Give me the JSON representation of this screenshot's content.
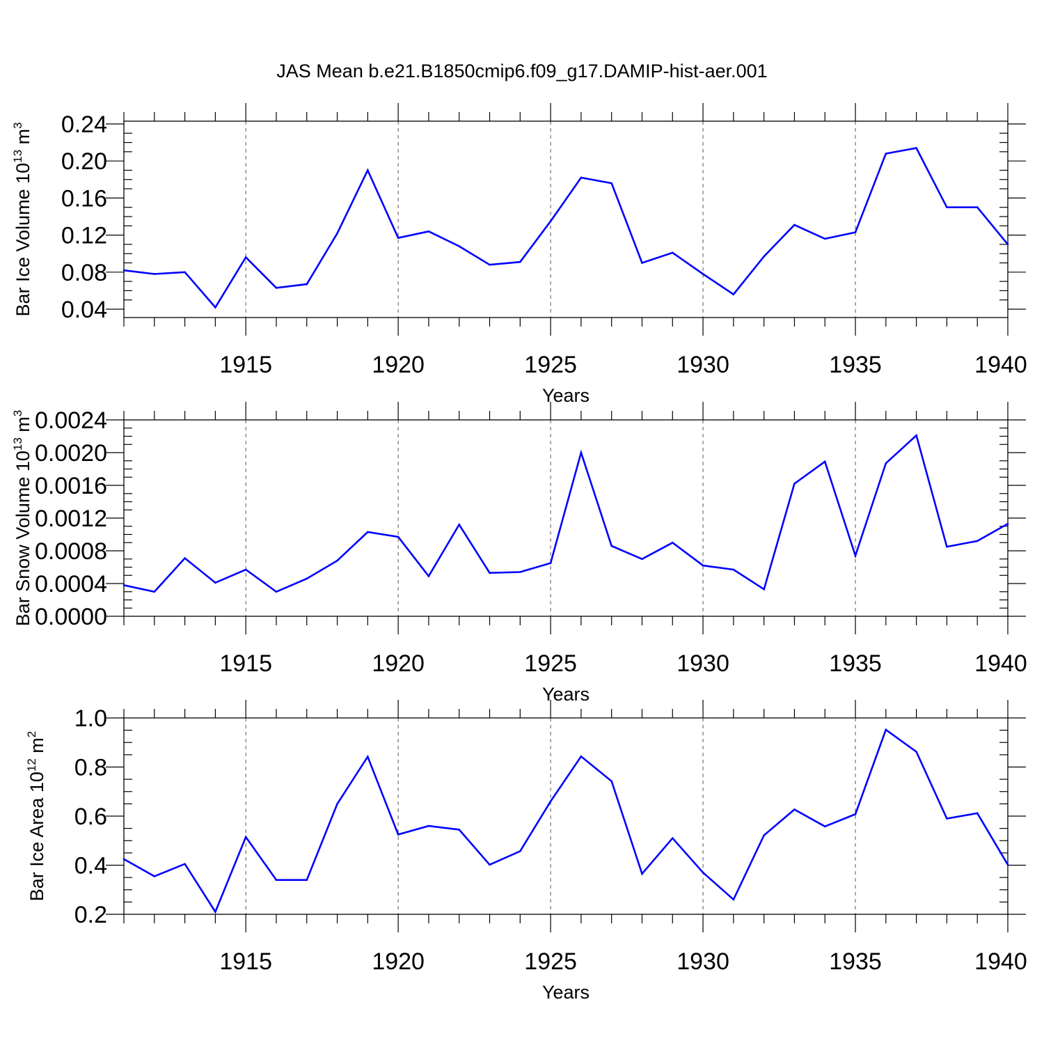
{
  "title": "JAS Mean b.e21.B1850cmip6.f09_g17.DAMIP-hist-aer.001",
  "colors": {
    "line": "#0000ff",
    "axes": "#000000",
    "grid": "#555555",
    "background": "#ffffff"
  },
  "chart_data": [
    {
      "type": "line",
      "ylabel": {
        "prefix": "Bar Ice Volume 10",
        "exp": "13",
        "unit": " m",
        "unit_exp": "3"
      },
      "xlabel": "Years",
      "xlim": [
        1911,
        1940
      ],
      "ylim": [
        0.031,
        0.243
      ],
      "x_ticks": [
        1915,
        1920,
        1925,
        1930,
        1935,
        1940
      ],
      "y_ticks": [
        0.04,
        0.08,
        0.12,
        0.16,
        0.2,
        0.24
      ],
      "y_tick_labels": [
        "0.04",
        "0.08",
        "0.12",
        "0.16",
        "0.20",
        "0.24"
      ],
      "x": [
        1911,
        1912,
        1913,
        1914,
        1915,
        1916,
        1917,
        1918,
        1919,
        1920,
        1921,
        1922,
        1923,
        1924,
        1925,
        1926,
        1927,
        1928,
        1929,
        1930,
        1931,
        1932,
        1933,
        1934,
        1935,
        1936,
        1937,
        1938,
        1939,
        1940
      ],
      "values": [
        0.082,
        0.078,
        0.08,
        0.042,
        0.096,
        0.063,
        0.067,
        0.122,
        0.19,
        0.117,
        0.124,
        0.108,
        0.088,
        0.091,
        0.135,
        0.182,
        0.176,
        0.09,
        0.101,
        0.078,
        0.056,
        0.097,
        0.131,
        0.116,
        0.123,
        0.208,
        0.214,
        0.15,
        0.15,
        0.11
      ]
    },
    {
      "type": "line",
      "ylabel": {
        "prefix": "Bar Snow Volume 10",
        "exp": "13",
        "unit": " m",
        "unit_exp": "3"
      },
      "xlabel": "Years",
      "xlim": [
        1911,
        1940
      ],
      "ylim": [
        0.0,
        0.0024
      ],
      "x_ticks": [
        1915,
        1920,
        1925,
        1930,
        1935,
        1940
      ],
      "y_ticks": [
        0.0,
        0.0004,
        0.0008,
        0.0012,
        0.0016,
        0.002,
        0.0024
      ],
      "y_tick_labels": [
        "0.0000",
        "0.0004",
        "0.0008",
        "0.0012",
        "0.0016",
        "0.0020",
        "0.0024"
      ],
      "x": [
        1911,
        1912,
        1913,
        1914,
        1915,
        1916,
        1917,
        1918,
        1919,
        1920,
        1921,
        1922,
        1923,
        1924,
        1925,
        1926,
        1927,
        1928,
        1929,
        1930,
        1931,
        1932,
        1933,
        1934,
        1935,
        1936,
        1937,
        1938,
        1939,
        1940
      ],
      "values": [
        0.00038,
        0.0003,
        0.00071,
        0.00041,
        0.00057,
        0.0003,
        0.00046,
        0.00068,
        0.00103,
        0.00097,
        0.00049,
        0.00112,
        0.00053,
        0.00054,
        0.00065,
        0.002,
        0.00086,
        0.0007,
        0.0009,
        0.00062,
        0.00057,
        0.00033,
        0.00162,
        0.00189,
        0.00074,
        0.00187,
        0.00221,
        0.00085,
        0.00092,
        0.00113
      ]
    },
    {
      "type": "line",
      "ylabel": {
        "prefix": "Bar Ice Area 10",
        "exp": "12",
        "unit": " m",
        "unit_exp": "2"
      },
      "xlabel": "Years",
      "xlim": [
        1911,
        1940
      ],
      "ylim": [
        0.2,
        1.0
      ],
      "x_ticks": [
        1915,
        1920,
        1925,
        1930,
        1935,
        1940
      ],
      "y_ticks": [
        0.2,
        0.4,
        0.6,
        0.8,
        1.0
      ],
      "y_tick_labels": [
        "0.2",
        "0.4",
        "0.6",
        "0.8",
        "1.0"
      ],
      "x": [
        1911,
        1912,
        1913,
        1914,
        1915,
        1916,
        1917,
        1918,
        1919,
        1920,
        1921,
        1922,
        1923,
        1924,
        1925,
        1926,
        1927,
        1928,
        1929,
        1930,
        1931,
        1932,
        1933,
        1934,
        1935,
        1936,
        1937,
        1938,
        1939,
        1940
      ],
      "values": [
        0.425,
        0.355,
        0.405,
        0.21,
        0.515,
        0.34,
        0.34,
        0.65,
        0.842,
        0.525,
        0.56,
        0.545,
        0.402,
        0.457,
        0.66,
        0.843,
        0.742,
        0.365,
        0.51,
        0.37,
        0.26,
        0.522,
        0.627,
        0.558,
        0.608,
        0.952,
        0.862,
        0.59,
        0.612,
        0.402
      ]
    }
  ]
}
